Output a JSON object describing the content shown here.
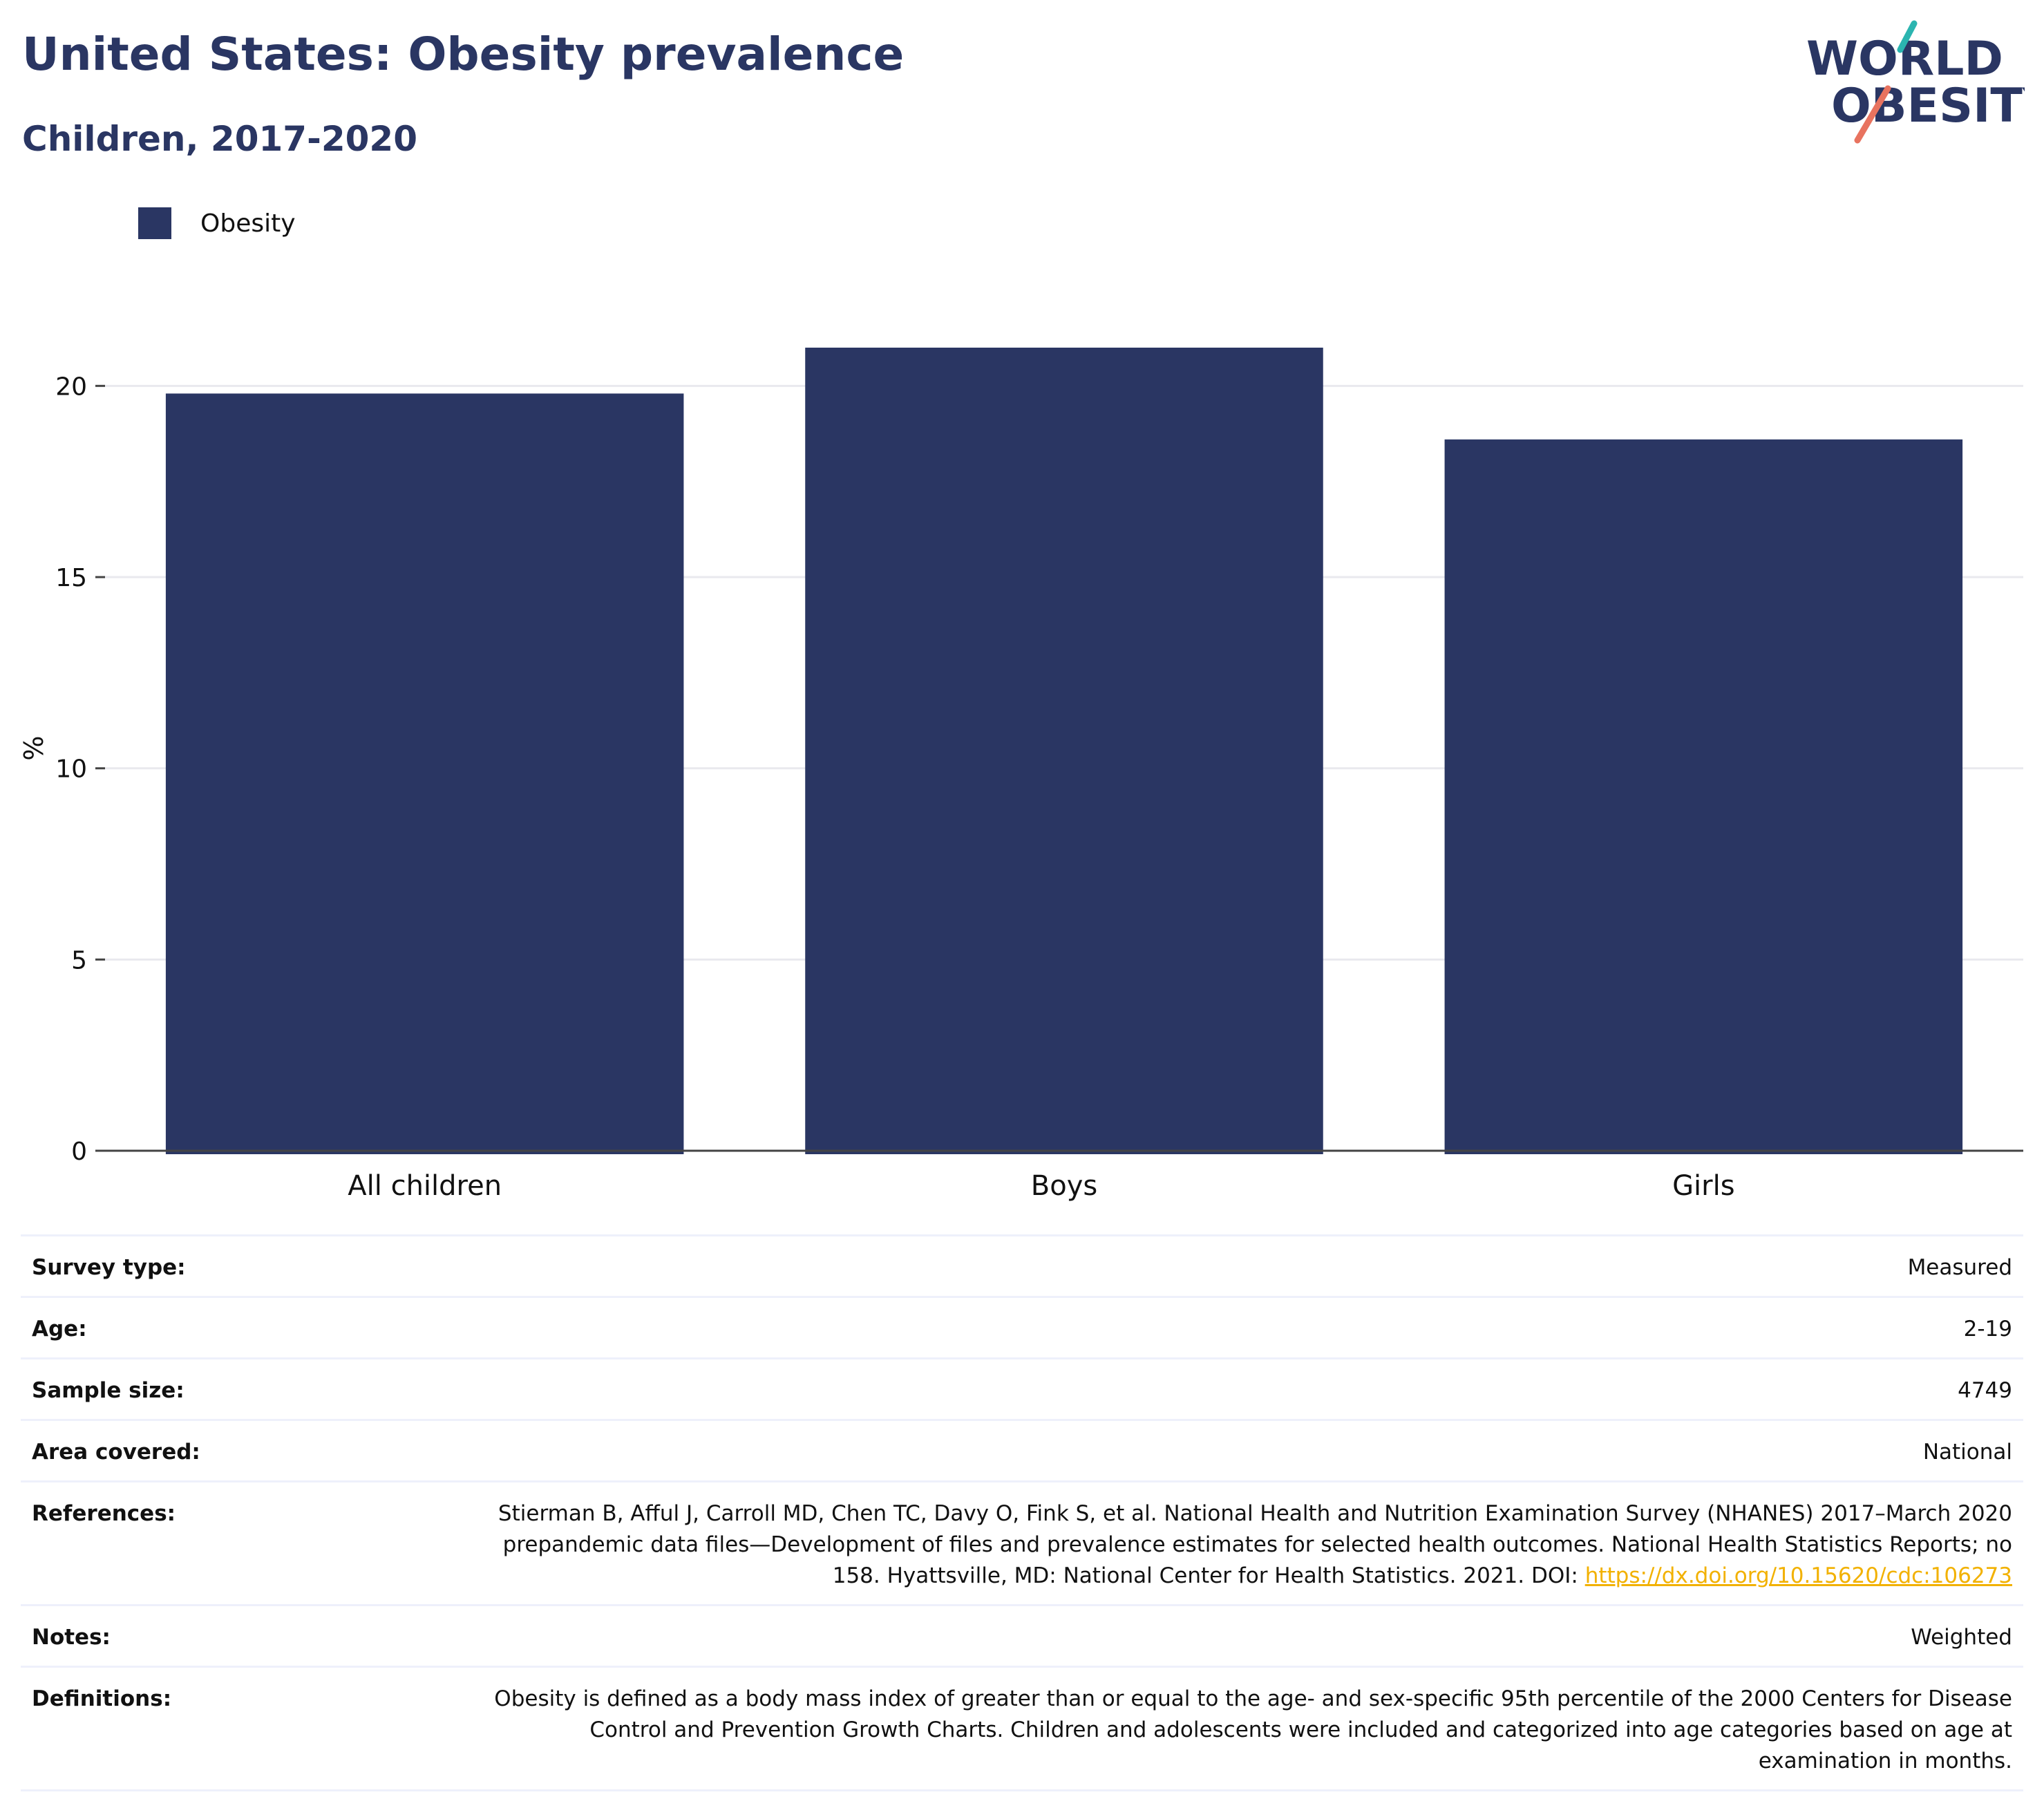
{
  "header": {
    "title": "United States: Obesity prevalence",
    "subtitle": "Children, 2017-2020"
  },
  "logo": {
    "line1": "WORLD",
    "line2": "OBESITY",
    "colors": {
      "navy": "#2a3663",
      "teal": "#2bb5b0",
      "coral": "#e8735f"
    }
  },
  "colors": {
    "bar": "#2a3663",
    "grid": "#e9e9ee",
    "axis": "#444444",
    "link": "#f2b100"
  },
  "chart_data": {
    "type": "bar",
    "categories": [
      "All children",
      "Boys",
      "Girls"
    ],
    "series": [
      {
        "name": "Obesity",
        "values": [
          19.8,
          21.0,
          18.6
        ]
      }
    ],
    "ylabel": "%",
    "ylim": [
      0,
      22.5
    ],
    "yticks": [
      0,
      5,
      10,
      15,
      20
    ],
    "grid": true,
    "legend_position": "top-left"
  },
  "info": {
    "rows": [
      {
        "key": "Survey type:",
        "value": "Measured"
      },
      {
        "key": "Age:",
        "value": "2-19"
      },
      {
        "key": "Sample size:",
        "value": "4749"
      },
      {
        "key": "Area covered:",
        "value": "National"
      },
      {
        "key": "References:",
        "value": "Stierman B, Afful J, Carroll MD, Chen TC, Davy O, Fink S, et al. National Health and Nutrition Examination Survey (NHANES) 2017–March 2020 prepandemic data files—Development of files and prevalence estimates for selected health outcomes. National Health Statistics Reports; no 158. Hyattsville, MD: National Center for Health Statistics. 2021. DOI:",
        "link": "https://dx.doi.org/10.15620/cdc:106273"
      },
      {
        "key": "Notes:",
        "value": "Weighted"
      },
      {
        "key": "Definitions:",
        "value": "Obesity is defined as a body mass index of greater than or equal to the age- and sex-specific 95th percentile of the 2000 Centers for Disease Control and Prevention Growth Charts. Children and adolescents were included and categorized into age categories based on age at examination in months."
      }
    ]
  }
}
